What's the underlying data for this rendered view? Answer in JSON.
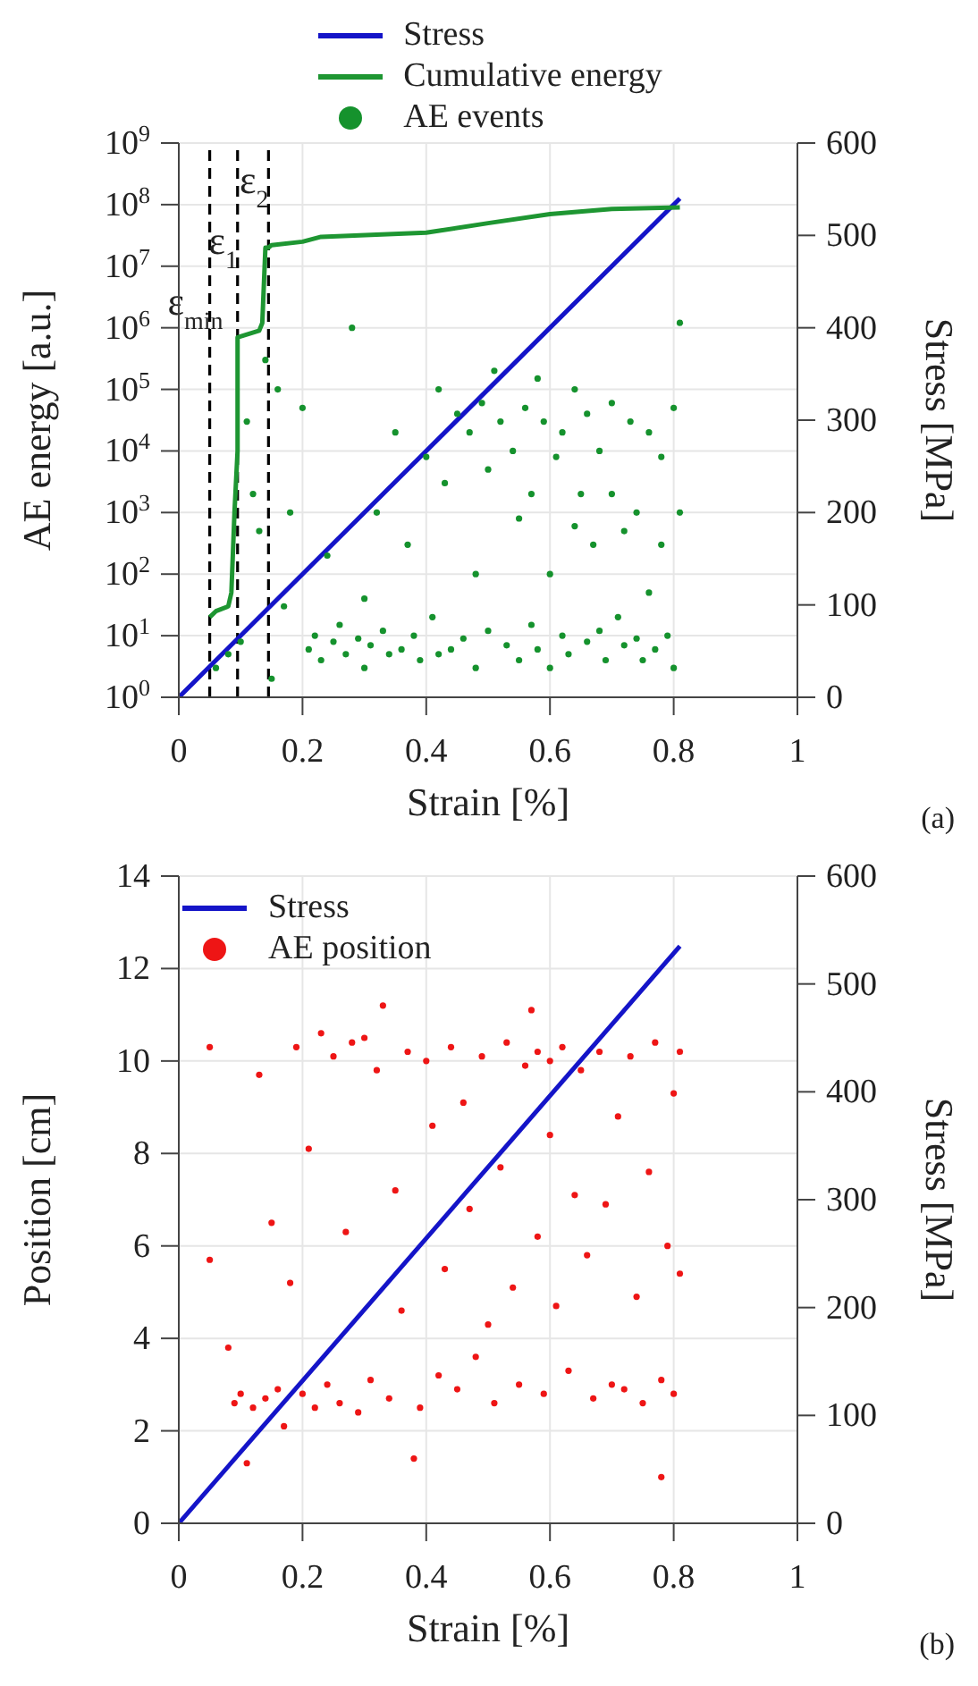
{
  "chart_data": [
    {
      "type": "scatter",
      "xlabel": "Strain [%]",
      "ylabel": "AE energy [a.u.]",
      "y2label": "Stress [MPa]",
      "log": "y",
      "grid": true,
      "legend": "top",
      "xlim": [
        0,
        1
      ],
      "xticks": [
        0,
        0.2,
        0.4,
        0.6,
        0.8,
        1
      ],
      "ylim": [
        1,
        1000000000
      ],
      "yticks": [
        {
          "value": 1,
          "label": "10$^{0}$"
        },
        {
          "value": 10,
          "label": "10$^{1}$"
        },
        {
          "value": 100,
          "label": "10$^{2}$"
        },
        {
          "value": 1000,
          "label": "10$^{3}$"
        },
        {
          "value": 10000,
          "label": "10$^{4}$"
        },
        {
          "value": 100000,
          "label": "10$^{5}$"
        },
        {
          "value": 1000000,
          "label": "10$^{6}$"
        },
        {
          "value": 10000000,
          "label": "10$^{7}$"
        },
        {
          "value": 100000000,
          "label": "10$^{8}$"
        },
        {
          "value": 1000000000,
          "label": "10$^{9}$"
        }
      ],
      "y2lim": [
        0,
        600
      ],
      "y2ticks": [
        0,
        100,
        200,
        300,
        400,
        500,
        600
      ],
      "series": [
        {
          "name": "Stress",
          "type": "line",
          "axis": "y2",
          "color": "#1414c8",
          "x": [
            0,
            0.81
          ],
          "values": [
            0,
            540
          ]
        },
        {
          "name": "Cumulative energy",
          "type": "line",
          "color": "#1e9632",
          "x": [
            0.05,
            0.06,
            0.08,
            0.085,
            0.09,
            0.095,
            0.095,
            0.13,
            0.135,
            0.14,
            0.145,
            0.15,
            0.2,
            0.23,
            0.4,
            0.5,
            0.6,
            0.7,
            0.81
          ],
          "values": [
            20,
            25,
            30,
            50,
            1000,
            10000,
            700000,
            900000,
            1200000,
            20000000,
            20000000,
            22000000,
            25000000,
            30000000,
            35000000,
            50000000,
            70000000,
            85000000,
            90000000
          ]
        },
        {
          "name": "AE events",
          "color": "#15922d",
          "x": [
            0.06,
            0.08,
            0.1,
            0.11,
            0.12,
            0.13,
            0.14,
            0.15,
            0.16,
            0.17,
            0.18,
            0.2,
            0.21,
            0.22,
            0.23,
            0.24,
            0.25,
            0.26,
            0.27,
            0.28,
            0.29,
            0.3,
            0.3,
            0.31,
            0.32,
            0.33,
            0.34,
            0.35,
            0.36,
            0.37,
            0.38,
            0.39,
            0.4,
            0.41,
            0.42,
            0.42,
            0.43,
            0.44,
            0.45,
            0.46,
            0.47,
            0.48,
            0.48,
            0.49,
            0.5,
            0.5,
            0.51,
            0.52,
            0.53,
            0.54,
            0.55,
            0.55,
            0.56,
            0.57,
            0.57,
            0.58,
            0.58,
            0.59,
            0.6,
            0.6,
            0.61,
            0.62,
            0.62,
            0.63,
            0.64,
            0.64,
            0.65,
            0.66,
            0.66,
            0.67,
            0.68,
            0.68,
            0.69,
            0.7,
            0.7,
            0.71,
            0.72,
            0.72,
            0.73,
            0.74,
            0.74,
            0.75,
            0.76,
            0.76,
            0.77,
            0.78,
            0.78,
            0.79,
            0.8,
            0.8,
            0.81,
            0.81
          ],
          "values": [
            3,
            5,
            8,
            30000,
            2000,
            500,
            300000,
            2,
            100000,
            30,
            1000,
            50000,
            6,
            10,
            4,
            200,
            8,
            15,
            5,
            1000000,
            9,
            3,
            40,
            7,
            1000,
            12,
            5,
            20000,
            6,
            300,
            10,
            4,
            8000,
            20,
            5,
            100000,
            3000,
            6,
            40000,
            9,
            20000,
            100,
            3,
            60000,
            5000,
            12,
            200000,
            30000,
            7,
            10000,
            800,
            4,
            50000,
            2000,
            15,
            6,
            150000,
            30000,
            3,
            100,
            8000,
            10,
            20000,
            5,
            600,
            100000,
            2000,
            8,
            40000,
            300,
            12,
            10000,
            4,
            2000,
            60000,
            20,
            7,
            500,
            30000,
            9,
            1000,
            4,
            20000,
            50,
            6,
            8000,
            300,
            10,
            50000,
            3,
            1000,
            1200000
          ]
        }
      ],
      "ref_lines": [
        {
          "axis": "x",
          "value": 0.05,
          "label": "ε$_{min}$",
          "color": "#000000",
          "line_style": "dashed"
        },
        {
          "axis": "x",
          "value": 0.095,
          "label": "ε$_{1}$",
          "color": "#000000",
          "line_style": "dashed"
        },
        {
          "axis": "x",
          "value": 0.145,
          "label": "ε$_{2}$",
          "color": "#000000",
          "line_style": "dashed"
        }
      ],
      "annotations": [
        "(a)"
      ]
    },
    {
      "type": "scatter",
      "xlabel": "Strain [%]",
      "ylabel": "Position [cm]",
      "y2label": "Stress [MPa]",
      "grid": true,
      "legend": "top left",
      "xlim": [
        0,
        1
      ],
      "xticks": [
        0,
        0.2,
        0.4,
        0.6,
        0.8,
        1
      ],
      "ylim": [
        0,
        14
      ],
      "yticks": [
        0,
        2,
        4,
        6,
        8,
        10,
        12,
        14
      ],
      "y2lim": [
        0,
        600
      ],
      "y2ticks": [
        0,
        100,
        200,
        300,
        400,
        500,
        600
      ],
      "series": [
        {
          "name": "Stress",
          "type": "line",
          "axis": "y2",
          "color": "#1414c8",
          "x": [
            0,
            0.81
          ],
          "values": [
            0,
            535
          ]
        },
        {
          "name": "AE position",
          "color": "#ee1515",
          "x": [
            0.05,
            0.05,
            0.08,
            0.09,
            0.1,
            0.11,
            0.12,
            0.13,
            0.14,
            0.15,
            0.16,
            0.17,
            0.18,
            0.19,
            0.2,
            0.21,
            0.22,
            0.23,
            0.24,
            0.25,
            0.26,
            0.27,
            0.28,
            0.29,
            0.3,
            0.31,
            0.32,
            0.33,
            0.34,
            0.35,
            0.36,
            0.37,
            0.38,
            0.39,
            0.4,
            0.41,
            0.42,
            0.43,
            0.44,
            0.45,
            0.46,
            0.47,
            0.48,
            0.49,
            0.5,
            0.51,
            0.52,
            0.53,
            0.54,
            0.55,
            0.56,
            0.57,
            0.58,
            0.58,
            0.59,
            0.6,
            0.6,
            0.61,
            0.62,
            0.63,
            0.64,
            0.65,
            0.66,
            0.67,
            0.68,
            0.69,
            0.7,
            0.71,
            0.72,
            0.73,
            0.74,
            0.75,
            0.76,
            0.77,
            0.78,
            0.78,
            0.79,
            0.8,
            0.8,
            0.81,
            0.81
          ],
          "values": [
            5.7,
            10.3,
            3.8,
            2.6,
            2.8,
            1.3,
            2.5,
            9.7,
            2.7,
            6.5,
            2.9,
            2.1,
            5.2,
            10.3,
            2.8,
            8.1,
            2.5,
            10.6,
            3.0,
            10.1,
            2.6,
            6.3,
            10.4,
            2.4,
            10.5,
            3.1,
            9.8,
            11.2,
            2.7,
            7.2,
            4.6,
            10.2,
            1.4,
            2.5,
            10.0,
            8.6,
            3.2,
            5.5,
            10.3,
            2.9,
            9.1,
            6.8,
            3.6,
            10.1,
            4.3,
            2.6,
            7.7,
            10.4,
            5.1,
            3.0,
            9.9,
            11.1,
            6.2,
            10.2,
            2.8,
            8.4,
            10.0,
            4.7,
            10.3,
            3.3,
            7.1,
            9.8,
            5.8,
            2.7,
            10.2,
            6.9,
            3.0,
            8.8,
            2.9,
            10.1,
            4.9,
            2.6,
            7.6,
            10.4,
            1.0,
            3.1,
            6.0,
            9.3,
            2.8,
            10.2,
            5.4
          ]
        }
      ],
      "annotations": [
        "(b)"
      ]
    }
  ]
}
